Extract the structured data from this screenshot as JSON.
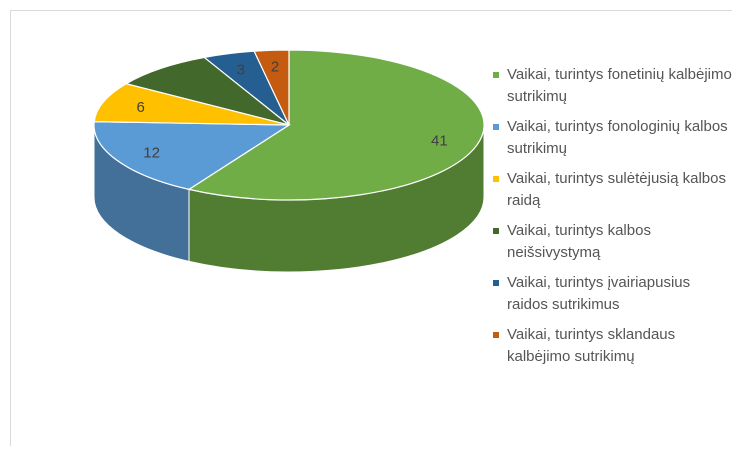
{
  "chart_data": {
    "type": "pie",
    "style": "3d",
    "legend_position": "right",
    "slices": [
      {
        "label": "Vaikai, turintys fonetinių kalbėjimo sutrikimų",
        "value": 41,
        "value_label": "41",
        "color": "#70ad47"
      },
      {
        "label": "Vaikai, turintys fonologinių kalbos sutrikimų",
        "value": 12,
        "value_label": "12",
        "color": "#5b9bd5"
      },
      {
        "label": "Vaikai, turintys sulėtėjusią kalbos raidą",
        "value": 6,
        "value_label": "6",
        "color": "#ffc000"
      },
      {
        "label": "Vaikai, turintys kalbos neišsivystymą",
        "value": 6,
        "value_label": "",
        "color": "#43682b"
      },
      {
        "label": "Vaikai, turintys įvairiapusius raidos sutrikimus",
        "value": 3,
        "value_label": "3",
        "color": "#255e91"
      },
      {
        "label": "Vaikai, turintys sklandaus kalbėjimo sutrikimų",
        "value": 2,
        "value_label": "2",
        "color": "#c55a11"
      }
    ]
  }
}
